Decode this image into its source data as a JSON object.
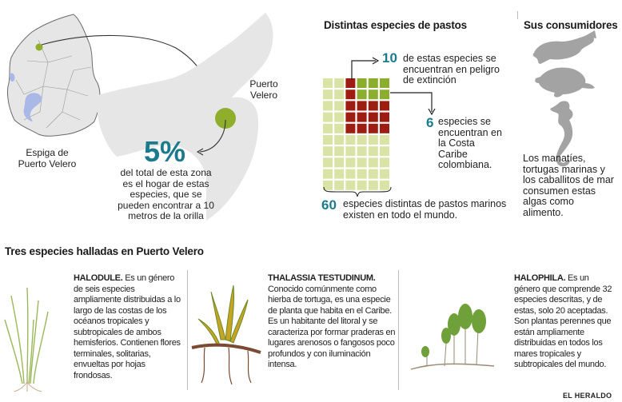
{
  "map": {
    "place_label": "Espiga de Puerto Velero",
    "zoom_label": "Puerto Velero",
    "big_percent": "5%",
    "percent_text": "del total de esta zona es el hogar de estas especies, que se pueden encontrar a 10 metros de la orilla",
    "colors": {
      "land": "#e6e6e6",
      "border": "#6b6b6b",
      "water": "#a9b8e6",
      "dot": "#8fae2c",
      "teal": "#1b7a8c"
    }
  },
  "grasses": {
    "title": "Distintas especies de pastos",
    "total": 60,
    "columns": 6,
    "endangered": 10,
    "caribbean": 6,
    "endangered_number": "10",
    "endangered_text": "de estas especies se encuentran en peligro de extinción",
    "caribbean_number": "6",
    "caribbean_text": "especies se encuentran en la Costa Caribe colombiana.",
    "total_number": "60",
    "total_text": "especies distintas de pastos marinos existen en todo el mundo.",
    "colors": {
      "base": "#d9e3a6",
      "endangered": "#9e1d12",
      "caribbean": "#8cae2e"
    }
  },
  "consumers": {
    "title": "Sus consumidores",
    "text": "Los manatíes, tortugas marinas y los caballitos de mar consumen estas algas como alimento.",
    "icon_names": [
      "manatee-icon",
      "sea-turtle-icon",
      "seahorse-icon"
    ],
    "color": "#a3a3a3"
  },
  "species_section": {
    "title": "Tres especies halladas en Puerto Velero",
    "items": [
      {
        "name": "HALODULE.",
        "text": "Es un género de seis especies ampliamente distribuidas a lo largo de las costas de los océanos tropicales y subtropicales de ambos hemisferios. Contienen flores terminales, solitarias, envueltas por hojas frondosas."
      },
      {
        "name": "THALASSIA TESTUDINUM.",
        "text": "Conocido comúnmente como hierba de tortuga, es una especie de planta que habita en el Caribe. Es un habitante del litoral y se caracteriza por formar praderas en lugares arenosos o fangosos poco profundos y con iluminación intensa."
      },
      {
        "name": "HALOPHILA.",
        "text": "Es un género que comprende 32 especies descritas, y de estas, solo 20 aceptadas. Son plantas perennes que están ampliamente distribuidas en todos los mares tropicales y subtropicales del mundo."
      }
    ]
  },
  "credit": "EL HERALDO"
}
